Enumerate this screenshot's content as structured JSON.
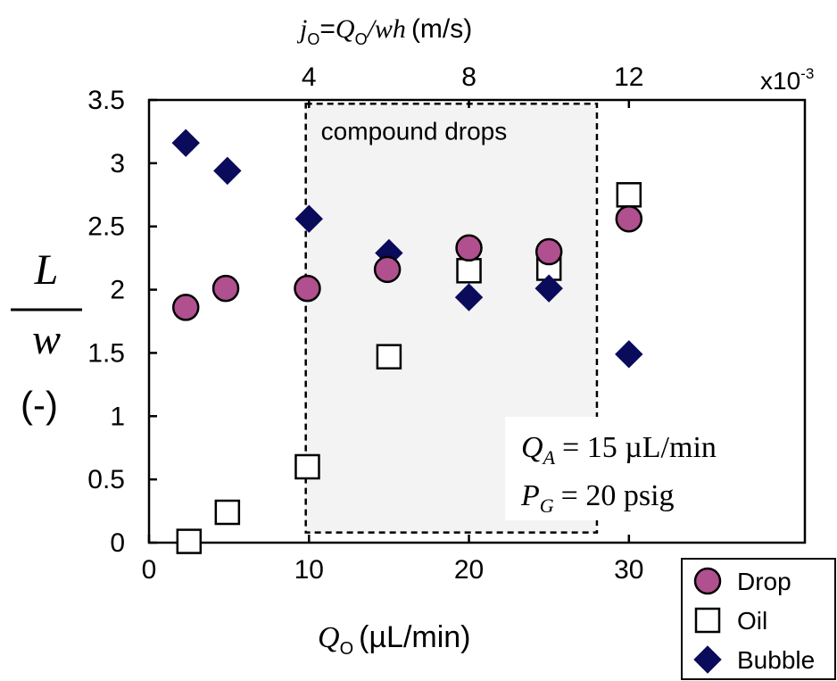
{
  "chart_data": {
    "type": "scatter",
    "xlabel": {
      "var": "Q",
      "sub": "O",
      "unit": "(µL/min)"
    },
    "ylabel": {
      "num": "L",
      "den": "w",
      "unit": "(-)"
    },
    "top_axis": {
      "label_var": "j",
      "label_sub": "O",
      "label_eq": "=",
      "label_rhs_var": "Q",
      "label_rhs_sub": "O",
      "label_rhs_tail": "/wh",
      "label_unit": "(m/s)",
      "ticks": [
        "4",
        "8",
        "12"
      ],
      "tick_positions_data": [
        10,
        20,
        30
      ],
      "multiplier": "x10",
      "multiplier_exp": "-3"
    },
    "xlim": [
      0,
      41
    ],
    "ylim": [
      0,
      3.5
    ],
    "xticks": [
      0,
      10,
      20,
      30
    ],
    "xticklabels": [
      "0",
      "10",
      "20",
      "30"
    ],
    "yticks": [
      0,
      0.5,
      1,
      1.5,
      2,
      2.5,
      3,
      3.5
    ],
    "yticklabels": [
      "0",
      "0.5",
      "1",
      "1.5",
      "2",
      "2.5",
      "3",
      "3.5"
    ],
    "region": {
      "label": "compound drops",
      "x": [
        9.8,
        28
      ],
      "y": [
        0.08,
        3.47
      ]
    },
    "conditions": [
      {
        "var": "Q",
        "sub": "A",
        "rhs": "= 15 µL/min"
      },
      {
        "var": "P",
        "sub": "G",
        "rhs": "= 20 psig"
      }
    ],
    "series": [
      {
        "name": "Drop",
        "marker": "circle",
        "color": "#b0508f",
        "x": [
          2.3,
          4.8,
          9.9,
          14.9,
          20,
          25,
          30
        ],
        "y": [
          1.86,
          2.01,
          2.01,
          2.16,
          2.33,
          2.3,
          2.56
        ]
      },
      {
        "name": "Oil",
        "marker": "square",
        "color": "#ffffff",
        "x": [
          2.5,
          4.9,
          9.9,
          15,
          20,
          25,
          30
        ],
        "y": [
          0.01,
          0.24,
          0.6,
          1.47,
          2.15,
          2.17,
          2.75
        ]
      },
      {
        "name": "Bubble",
        "marker": "diamond",
        "color": "#0b0b5c",
        "x": [
          2.3,
          4.9,
          10,
          15,
          20,
          25,
          30
        ],
        "y": [
          3.16,
          2.94,
          2.56,
          2.29,
          1.94,
          2.01,
          1.49
        ]
      }
    ]
  }
}
